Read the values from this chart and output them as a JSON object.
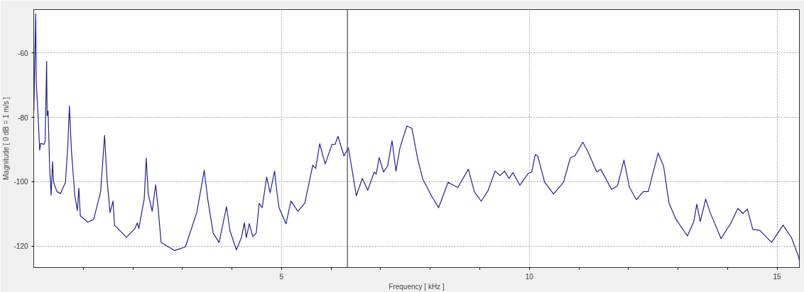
{
  "chart_data": {
    "type": "line",
    "xlabel": "Frequency [ kHz ]",
    "ylabel": "Magnitude [ 0 dB = 1 m/s ]",
    "xlim": [
      0,
      15.45
    ],
    "ylim": [
      -126.7,
      -46.5
    ],
    "xticks": [
      {
        "value": 1,
        "label": null
      },
      {
        "value": 2,
        "label": null
      },
      {
        "value": 3,
        "label": null
      },
      {
        "value": 4,
        "label": null
      },
      5,
      {
        "value": 6,
        "label": null
      },
      {
        "value": 7,
        "label": null
      },
      {
        "value": 8,
        "label": null
      },
      {
        "value": 9,
        "label": null
      },
      10,
      {
        "value": 11,
        "label": null
      },
      {
        "value": 12,
        "label": null
      },
      {
        "value": 13,
        "label": null
      },
      {
        "value": 14,
        "label": null
      },
      15
    ],
    "yticks": [
      -60,
      -80,
      -100,
      -120
    ],
    "grid": true,
    "line_style": "solid",
    "marker": "none",
    "ref_lines": [
      {
        "axis": "x",
        "value": 6.33,
        "color": "#555555"
      }
    ],
    "series": [
      {
        "color": "#20209a",
        "x": [
          0.003,
          0.02,
          0.04,
          0.05,
          0.07,
          0.09,
          0.12,
          0.14,
          0.21,
          0.23,
          0.26,
          0.27,
          0.29,
          0.32,
          0.34,
          0.35,
          0.38,
          0.4,
          0.47,
          0.54,
          0.64,
          0.69,
          0.72,
          0.76,
          0.83,
          0.88,
          0.91,
          0.94,
          1.09,
          1.21,
          1.35,
          1.43,
          1.48,
          1.54,
          1.6,
          1.63,
          1.87,
          2.04,
          2.09,
          2.12,
          2.23,
          2.27,
          2.31,
          2.39,
          2.46,
          2.51,
          2.57,
          2.84,
          3.06,
          3.29,
          3.44,
          3.51,
          3.62,
          3.74,
          3.89,
          3.96,
          4.09,
          4.19,
          4.25,
          4.29,
          4.35,
          4.42,
          4.49,
          4.55,
          4.61,
          4.7,
          4.77,
          4.86,
          4.9,
          4.95,
          5.09,
          5.19,
          5.33,
          5.47,
          5.63,
          5.69,
          5.77,
          5.88,
          6.02,
          6.08,
          6.14,
          6.26,
          6.35,
          6.51,
          6.63,
          6.74,
          6.87,
          6.91,
          6.97,
          7.06,
          7.14,
          7.23,
          7.31,
          7.39,
          7.53,
          7.63,
          7.75,
          7.85,
          8.03,
          8.17,
          8.36,
          8.56,
          8.77,
          8.89,
          9.03,
          9.17,
          9.31,
          9.41,
          9.5,
          9.59,
          9.67,
          9.81,
          9.98,
          10.05,
          10.12,
          10.17,
          10.31,
          10.49,
          10.69,
          10.83,
          10.92,
          11.08,
          11.19,
          11.36,
          11.44,
          11.66,
          11.78,
          11.91,
          12.02,
          12.16,
          12.3,
          12.4,
          12.6,
          12.71,
          12.82,
          12.96,
          13.19,
          13.32,
          13.38,
          13.45,
          13.56,
          13.65,
          13.87,
          14.06,
          14.21,
          14.31,
          14.4,
          14.51,
          14.65,
          14.89,
          15.12,
          15.29,
          15.43,
          15.45
        ],
        "values": [
          -78,
          -63,
          -47.8,
          -68.7,
          -74.5,
          -80.2,
          -90.2,
          -88.1,
          -88.4,
          -87.3,
          -62.6,
          -79.5,
          -78,
          -95.2,
          -101,
          -104.2,
          -93.8,
          -100.2,
          -103.1,
          -103.7,
          -100.2,
          -88.1,
          -76.5,
          -90.2,
          -104.5,
          -109,
          -102,
          -110.6,
          -112.6,
          -111.7,
          -103.1,
          -85.6,
          -99.5,
          -109.6,
          -106,
          -113.5,
          -117.3,
          -114.6,
          -112.8,
          -114.6,
          -105.3,
          -92.7,
          -103.8,
          -109.2,
          -101,
          -108.1,
          -118.9,
          -121.4,
          -120.3,
          -109.6,
          -96.5,
          -105.3,
          -116,
          -118.9,
          -107.8,
          -115.3,
          -121.2,
          -117.4,
          -112.8,
          -117.4,
          -113,
          -117.1,
          -116,
          -106.7,
          -108.1,
          -98.5,
          -103.5,
          -96.7,
          -102.4,
          -108.1,
          -113.1,
          -106,
          -109.2,
          -106.7,
          -94.9,
          -95.9,
          -88.2,
          -94.5,
          -88.4,
          -88.4,
          -85.9,
          -92,
          -89.5,
          -104.4,
          -99,
          -102.7,
          -97,
          -97.7,
          -92.5,
          -97,
          -95.2,
          -87.3,
          -96.7,
          -89.5,
          -82.7,
          -83.4,
          -93.1,
          -99.2,
          -104.5,
          -108.1,
          -100.2,
          -101.8,
          -96.1,
          -103.1,
          -106.1,
          -102.7,
          -96.7,
          -98.1,
          -96.7,
          -99,
          -97.2,
          -101.1,
          -97.4,
          -97,
          -91.6,
          -92,
          -100.2,
          -103.8,
          -100.2,
          -92.5,
          -92,
          -87.7,
          -90.9,
          -97,
          -96.1,
          -102.4,
          -101.3,
          -93.3,
          -101.7,
          -105.6,
          -103.1,
          -103.1,
          -91.1,
          -95.2,
          -106.7,
          -111.7,
          -116.9,
          -112.4,
          -107,
          -112.4,
          -105.4,
          -109.6,
          -117.7,
          -113.1,
          -108.3,
          -109.9,
          -108.5,
          -114.9,
          -115.1,
          -118.9,
          -113.5,
          -117.4,
          -123.2,
          -124.5
        ]
      }
    ]
  }
}
